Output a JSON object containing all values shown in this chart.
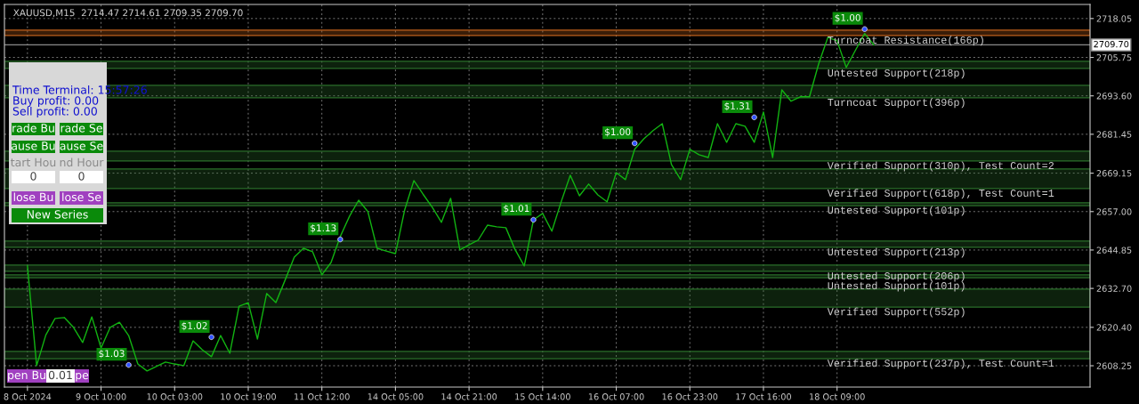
{
  "chart_data": {
    "type": "line",
    "title": "XAUUSD,M15  2714.47 2714.61 2709.35 2709.70",
    "categories": [
      "8 Oct 2024",
      null,
      null,
      null,
      null,
      null,
      null,
      null,
      "9 Oct 10:00",
      null,
      null,
      null,
      null,
      null,
      null,
      null,
      "10 Oct 03:00",
      null,
      null,
      null,
      null,
      null,
      null,
      null,
      "10 Oct 19:00",
      null,
      null,
      null,
      null,
      null,
      null,
      null,
      "11 Oct 12:00",
      null,
      null,
      null,
      null,
      null,
      null,
      null,
      "14 Oct 05:00",
      null,
      null,
      null,
      null,
      null,
      null,
      null,
      "14 Oct 21:00",
      null,
      null,
      null,
      null,
      null,
      null,
      null,
      "15 Oct 14:00",
      null,
      null,
      null,
      null,
      null,
      null,
      null,
      "16 Oct 07:00",
      null,
      null,
      null,
      null,
      null,
      null,
      null,
      "16 Oct 23:00",
      null,
      null,
      null,
      null,
      null,
      null,
      null,
      "17 Oct 16:00",
      null,
      null,
      null,
      null,
      null,
      null,
      null,
      "18 Oct 09:00",
      null,
      null,
      null,
      null,
      null,
      null,
      null,
      null,
      null,
      null,
      null,
      null,
      null,
      null,
      null,
      null,
      null,
      null,
      null,
      null,
      null,
      null,
      null,
      null,
      null,
      null,
      null
    ],
    "ylim": [
      2601.5,
      2722.5
    ],
    "yticks": [
      2608.25,
      {
        "value": 2620.4,
        "label": "2620.40"
      },
      {
        "value": 2632.7,
        "label": "2632.70"
      },
      2644.85,
      {
        "value": 2657.0,
        "label": "2657.00"
      },
      2669.15,
      2681.45,
      {
        "value": 2693.6,
        "label": "2693.60"
      },
      2705.75,
      2718.05
    ],
    "grid": true,
    "series": [
      {
        "color": "#12b312",
        "values": [
          2639.8,
          2608.3,
          2618,
          2623.2,
          2623.5,
          2620.4,
          2615.6,
          2623.7,
          2613.9,
          2620.4,
          2622.0,
          2617.8,
          2608.8,
          2606.6,
          2608,
          2609.4,
          2608.8,
          2608.3,
          2616.1,
          2613.3,
          2611.1,
          2617.8,
          2612.2,
          2627.1,
          2628.2,
          2616.7,
          2631.1,
          2628.2,
          2635.3,
          2642.6,
          2645.4,
          2644.3,
          2637.0,
          2640.9,
          2649.1,
          2655.5,
          2660.6,
          2657.0,
          2645.4,
          2644.5,
          2643.7,
          2657.5,
          2666.8,
          2662.5,
          2658.4,
          2653.6,
          2661.2,
          2644.9,
          2646.5,
          2648,
          2652.7,
          2652.2,
          2651.9,
          2645,
          2639.8,
          2654.4,
          2656.4,
          2650.8,
          2660,
          2668.5,
          2662.0,
          2665.7,
          2662.3,
          2660.1,
          2669.3,
          2667.1,
          2676.7,
          2680.0,
          2682.6,
          2684.8,
          2671.9,
          2667.1,
          2676.7,
          2675,
          2674.1,
          2684.8,
          2678.9,
          2684.8,
          2684,
          2678.9,
          2688.5,
          2674.1,
          2695.5,
          2691.9,
          2693.3,
          2693.3,
          2703.7,
          2712.1,
          2711.0,
          2702.6,
          2708,
          2713.3,
          2709.7,
          null,
          null,
          null,
          null,
          null,
          null,
          null,
          null,
          null,
          null,
          null,
          null,
          null,
          null,
          null,
          null,
          null,
          null,
          null,
          null,
          null,
          null,
          null
        ]
      },
      {
        "type": "scatter",
        "marker": "circle",
        "color": "#3050ff",
        "values": [
          null,
          null,
          null,
          null,
          null,
          null,
          null,
          null,
          null,
          null,
          null,
          2608.5,
          null,
          null,
          null,
          null,
          null,
          null,
          null,
          null,
          2617.3,
          null,
          null,
          null,
          null,
          null,
          null,
          null,
          null,
          null,
          null,
          null,
          null,
          null,
          2648.2,
          null,
          null,
          null,
          null,
          null,
          null,
          null,
          null,
          null,
          null,
          null,
          null,
          null,
          null,
          null,
          null,
          null,
          null,
          null,
          null,
          2654.4,
          null,
          null,
          null,
          null,
          null,
          null,
          null,
          null,
          null,
          null,
          2678.6,
          null,
          null,
          null,
          null,
          null,
          null,
          null,
          null,
          null,
          null,
          null,
          null,
          2686.8,
          null,
          null,
          null,
          null,
          null,
          null,
          null,
          null,
          null,
          null,
          null,
          2714.7,
          null,
          null,
          null,
          null,
          null,
          null,
          null,
          null,
          null,
          null,
          null,
          null,
          null,
          null,
          null,
          null,
          null,
          null,
          null,
          null,
          null,
          null,
          null,
          null
        ]
      }
    ],
    "ref_lines": [
      {
        "axis": "y",
        "value": 2709.7,
        "label": "2709.70",
        "color": "#8a8a8a"
      }
    ],
    "bands": [
      {
        "axis": "y",
        "from": 2712.7,
        "to": 2714.4,
        "label": "Turncoat Resistance(166p)",
        "color": "#c0601c"
      },
      {
        "axis": "y",
        "from": 2702.3,
        "to": 2704.5,
        "label": "Untested Support(218p)",
        "color": "#2a6e2a"
      },
      {
        "axis": "y",
        "from": 2693.0,
        "to": 2696.9,
        "label": "Turncoat Support(396p)",
        "color": "#2a6e2a"
      },
      {
        "axis": "y",
        "from": 2673.0,
        "to": 2676.1,
        "label": "Verified Support(310p), Test Count=2",
        "color": "#2a6e2a"
      },
      {
        "axis": "y",
        "from": 2664.3,
        "to": 2670.5,
        "label": "Verified Support(618p), Test Count=1",
        "color": "#2a6e2a"
      },
      {
        "axis": "y",
        "from": 2658.9,
        "to": 2659.8,
        "label": "Untested Support(101p)",
        "color": "#2a6e2a"
      },
      {
        "axis": "y",
        "from": 2645.7,
        "to": 2647.7,
        "label": "Untested Support(213p)",
        "color": "#2a6e2a"
      },
      {
        "axis": "y",
        "from": 2638.1,
        "to": 2640.1,
        "label": "Untested Support(206p)",
        "color": "#2a6e2a"
      },
      {
        "axis": "y",
        "from": 2636.1,
        "to": 2637.0,
        "label": "Untested Support(101p)",
        "color": "#2a6e2a"
      },
      {
        "axis": "y",
        "from": 2626.8,
        "to": 2632.5,
        "label": "Verified Support(552p)",
        "color": "#2a6e2a"
      },
      {
        "axis": "y",
        "from": 2610.5,
        "to": 2612.8,
        "label": "Verified Support(237p), Test Count=1",
        "color": "#2a6e2a"
      }
    ],
    "annotations": [
      "$1.03",
      "$1.02",
      "$1.13",
      "$1.01",
      "$1.00",
      "$1.31",
      "$1.00",
      "Time Terminal: 15:57:26",
      "Buy profit: 0.00",
      "Sell profit: 0.00",
      "rade Bu",
      "rade Se",
      "ause Bu",
      "ause Se",
      "tart Hou",
      "nd Hour",
      "0",
      "0",
      "lose Bu",
      "lose Se",
      "New Series",
      "pen Bu",
      "0.01",
      "pe"
    ]
  }
}
